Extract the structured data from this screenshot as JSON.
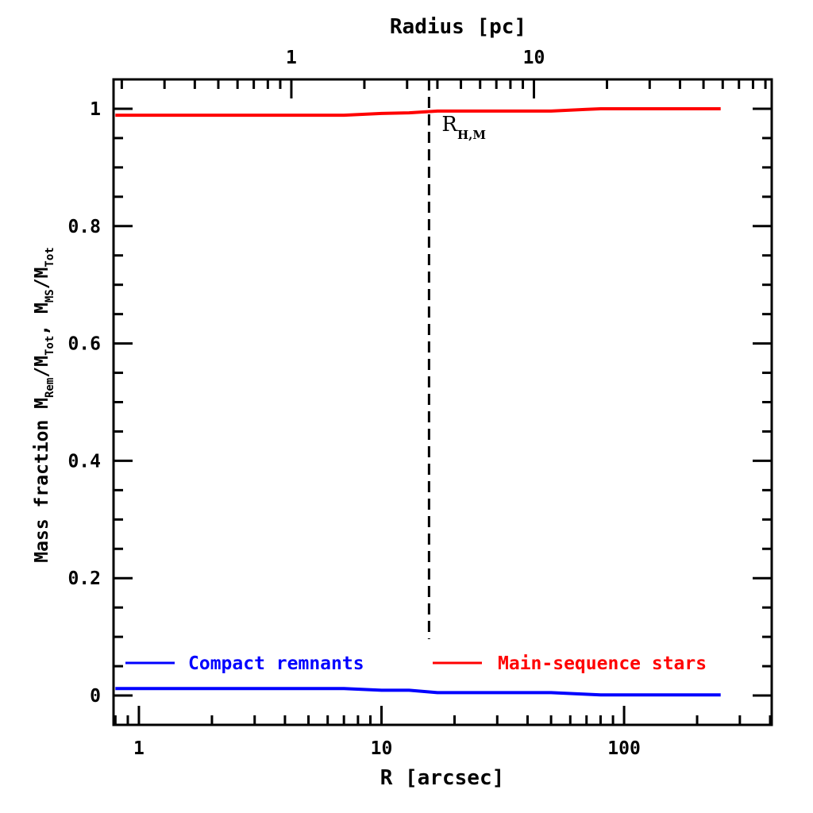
{
  "chart_data": {
    "type": "line",
    "title": "",
    "xlabel": "R [arcsec]",
    "top_xlabel": "Radius [pc]",
    "ylabel_parts": [
      "Mass fraction  M",
      "Rem",
      "/M",
      "Tot",
      ",  M",
      "MS",
      "/M",
      "Tot"
    ],
    "xscale": "log",
    "xlim": [
      0.786,
      406
    ],
    "ylim": [
      -0.05,
      1.05
    ],
    "x_ticks": [
      1,
      10,
      100
    ],
    "x_tick_labels": [
      "1",
      "10",
      "100"
    ],
    "top_x_ticks_pc": [
      1,
      10
    ],
    "top_x_tick_labels": [
      "1",
      "10"
    ],
    "arcsec_per_pc": 4.25,
    "y_ticks": [
      0,
      0.2,
      0.4,
      0.6,
      0.8,
      1
    ],
    "y_tick_labels": [
      "0",
      "0.2",
      "0.4",
      "0.6",
      "0.8",
      "1"
    ],
    "series": [
      {
        "name": "Compact remnants",
        "color": "#0000ff",
        "x": [
          0.8,
          2,
          5,
          7,
          10,
          13,
          17,
          30,
          50,
          80,
          150,
          250
        ],
        "y": [
          0.012,
          0.012,
          0.012,
          0.012,
          0.009,
          0.009,
          0.005,
          0.005,
          0.005,
          0.001,
          0.001,
          0.001
        ]
      },
      {
        "name": "Main-sequence stars",
        "color": "#ff0000",
        "x": [
          0.8,
          2,
          5,
          7,
          10,
          13,
          17,
          30,
          50,
          70,
          80,
          150,
          250
        ],
        "y": [
          0.989,
          0.989,
          0.989,
          0.989,
          0.992,
          0.993,
          0.996,
          0.996,
          0.996,
          0.999,
          1.0,
          1.0,
          1.0
        ]
      }
    ],
    "annotations": [
      {
        "type": "vline",
        "x": 15.7,
        "style": "dashed",
        "label": "R",
        "label_sub": "H,M"
      }
    ],
    "legend": {
      "placement": "bottom",
      "entries": [
        "Compact remnants",
        "Main-sequence stars"
      ]
    },
    "grid": false
  }
}
